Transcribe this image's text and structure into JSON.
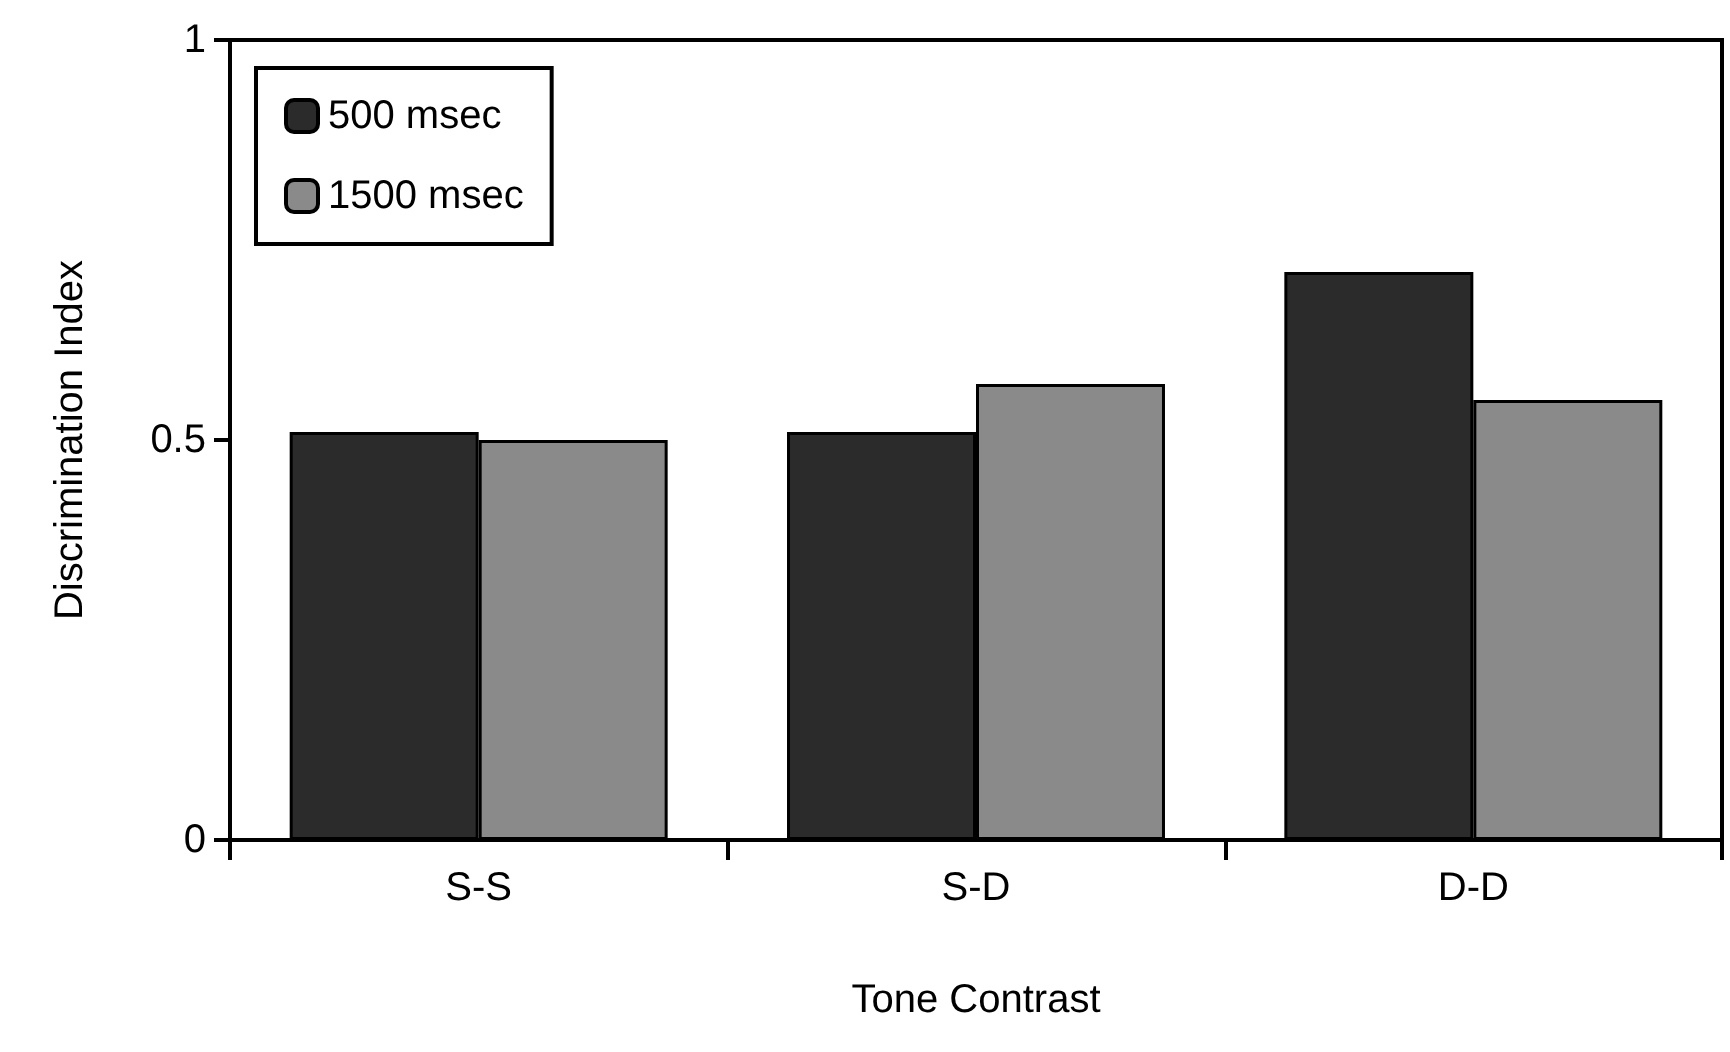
{
  "chart_data": {
    "type": "bar",
    "xlabel": "Tone Contrast",
    "ylabel": "Discrimination Index",
    "categories": [
      "S-S",
      "S-D",
      "D-D"
    ],
    "series": [
      {
        "name": "500 msec",
        "color": "#2b2b2b",
        "values": [
          0.51,
          0.51,
          0.71
        ]
      },
      {
        "name": "1500 msec",
        "color": "#8a8a8a",
        "values": [
          0.5,
          0.57,
          0.55
        ]
      }
    ],
    "ylim": [
      0,
      1
    ],
    "yticks": [
      0,
      0.5,
      1
    ],
    "grid": false,
    "legend": "top left"
  }
}
